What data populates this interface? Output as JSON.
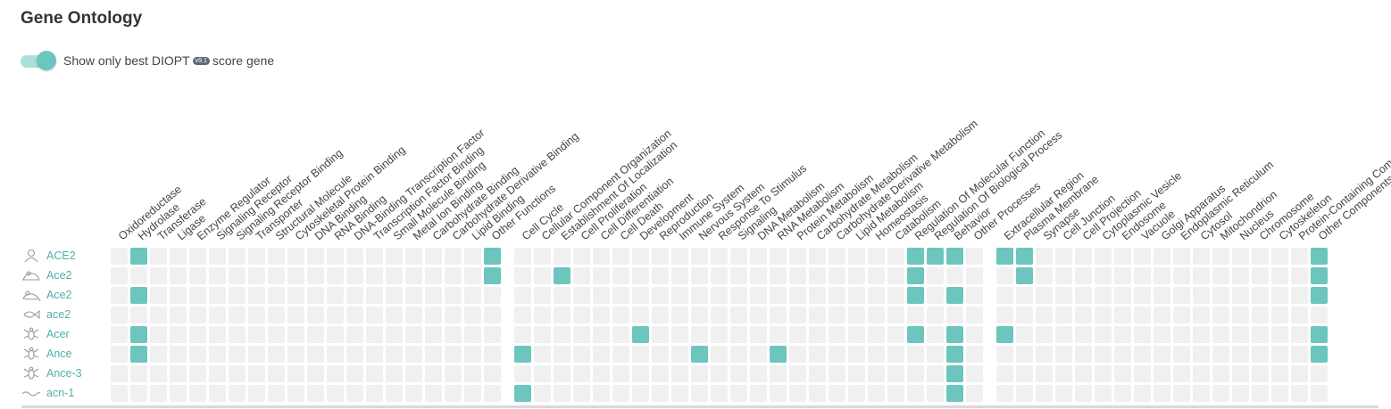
{
  "title": "Gene Ontology",
  "toggle": {
    "label_before": "Show only best DIOPT",
    "badge": "v9.1",
    "label_after": "score gene",
    "on": true
  },
  "colors": {
    "filled": "#6cc6bd",
    "empty": "#f0f0f0",
    "link": "#4fb1a7"
  },
  "groups": [
    {
      "name": "molecular-function",
      "columns": [
        "Oxidoreductase",
        "Hydrolase",
        "Transferase",
        "Ligase",
        "Enzyme Regulator",
        "Signaling Receptor",
        "Signaling Receptor Binding",
        "Transporter",
        "Structural Molecule",
        "Cytoskeletal Protein Binding",
        "DNA Binding",
        "RNA Binding",
        "DNA-Binding Transcription Factor",
        "Transcription Factor Binding",
        "Small Molecule Binding",
        "Metal Ion Binding",
        "Carbohydrate Binding",
        "Carbohydrate Derivative Binding",
        "Lipid Binding",
        "Other Functions"
      ]
    },
    {
      "name": "biological-process",
      "columns": [
        "Cell Cycle",
        "Cellular Component Organization",
        "Establishment Of Localization",
        "Cell Proliferation",
        "Cell Differentiation",
        "Cell Death",
        "Development",
        "Reproduction",
        "Immune System",
        "Nervous System",
        "Response To Stimulus",
        "Signaling",
        "DNA Metabolism",
        "RNA Metabolism",
        "Protein Metabolism",
        "Carbohydrate Metabolism",
        "Carbohydrate Derivative Metabolism",
        "Lipid Metabolism",
        "Homeostasis",
        "Catabolism",
        "Regulation Of Molecular Function",
        "Regulation Of Biological Process",
        "Behavior",
        "Other Processes"
      ]
    },
    {
      "name": "cellular-component",
      "columns": [
        "Extracellular Region",
        "Plasma Membrane",
        "Synapse",
        "Cell Junction",
        "Cell Projection",
        "Cytoplasmic Vesicle",
        "Endosome",
        "Vacuole",
        "Golgi Apparatus",
        "Endoplasmic Reticulum",
        "Cytosol",
        "Mitochondrion",
        "Nucleus",
        "Chromosome",
        "Cytoskeleton",
        "Protein-Containing Complex",
        "Other Components"
      ]
    }
  ],
  "rows": [
    {
      "gene": "ACE2",
      "species_icon": "human-icon",
      "filled": [
        [
          "Hydrolase",
          "Other Functions"
        ],
        [
          "Regulation Of Molecular Function",
          "Regulation Of Biological Process",
          "Behavior"
        ],
        [
          "Extracellular Region",
          "Plasma Membrane",
          "Other Components"
        ]
      ]
    },
    {
      "gene": "Ace2",
      "species_icon": "mouse-icon",
      "filled": [
        [
          "Other Functions"
        ],
        [
          "Establishment Of Localization",
          "Regulation Of Molecular Function"
        ],
        [
          "Plasma Membrane",
          "Other Components"
        ]
      ]
    },
    {
      "gene": "Ace2",
      "species_icon": "rat-icon",
      "filled": [
        [
          "Hydrolase"
        ],
        [
          "Regulation Of Molecular Function",
          "Behavior"
        ],
        [
          "Other Components"
        ]
      ]
    },
    {
      "gene": "ace2",
      "species_icon": "zebrafish-icon",
      "filled": [
        [],
        [],
        []
      ]
    },
    {
      "gene": "Acer",
      "species_icon": "fly-icon",
      "filled": [
        [
          "Hydrolase"
        ],
        [
          "Development",
          "Regulation Of Molecular Function",
          "Behavior"
        ],
        [
          "Extracellular Region",
          "Other Components"
        ]
      ]
    },
    {
      "gene": "Ance",
      "species_icon": "fly-icon",
      "filled": [
        [
          "Hydrolase"
        ],
        [
          "Cell Cycle",
          "Nervous System",
          "RNA Metabolism",
          "Behavior"
        ],
        [
          "Other Components"
        ]
      ]
    },
    {
      "gene": "Ance-3",
      "species_icon": "fly-icon",
      "filled": [
        [],
        [
          "Behavior"
        ],
        []
      ]
    },
    {
      "gene": "acn-1",
      "species_icon": "worm-icon",
      "filled": [
        [],
        [
          "Cell Cycle",
          "Behavior"
        ],
        []
      ]
    }
  ]
}
